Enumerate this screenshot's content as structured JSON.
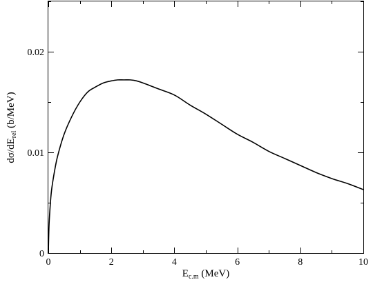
{
  "chart_data": {
    "type": "line",
    "xlabel": {
      "main": "E",
      "sub": "c.m",
      "rest": " (MeV)"
    },
    "ylabel": {
      "pre": "dσ/dE",
      "sub": "rel",
      "rest": " (b/MeV)"
    },
    "xlim": [
      0,
      10
    ],
    "ylim": [
      0,
      0.025
    ],
    "xticks": [
      {
        "value": 0,
        "label": "0"
      },
      {
        "value": 2,
        "label": "2"
      },
      {
        "value": 4,
        "label": "4"
      },
      {
        "value": 6,
        "label": "6"
      },
      {
        "value": 8,
        "label": "8"
      },
      {
        "value": 10,
        "label": "10"
      }
    ],
    "yticks": [
      {
        "value": 0,
        "label": "0"
      },
      {
        "value": 0.01,
        "label": "0.01"
      },
      {
        "value": 0.02,
        "label": "0.02"
      }
    ],
    "grid": false,
    "series": [
      {
        "color": "#000000",
        "x": [
          0.0,
          0.02,
          0.05,
          0.1,
          0.2,
          0.3,
          0.5,
          0.75,
          1.0,
          1.25,
          1.5,
          1.75,
          2.0,
          2.2,
          2.4,
          2.6,
          2.8,
          3.0,
          3.5,
          4.0,
          4.5,
          5.0,
          5.5,
          6.0,
          6.5,
          7.0,
          7.5,
          8.0,
          8.5,
          9.0,
          9.5,
          10.0
        ],
        "y": [
          0.0,
          0.0026,
          0.0043,
          0.0062,
          0.0082,
          0.0097,
          0.0118,
          0.0136,
          0.015,
          0.016,
          0.0165,
          0.0169,
          0.0171,
          0.0172,
          0.0172,
          0.0172,
          0.0171,
          0.0169,
          0.0163,
          0.0157,
          0.0147,
          0.0138,
          0.0128,
          0.0118,
          0.011,
          0.0101,
          0.0094,
          0.0087,
          0.008,
          0.0074,
          0.0069,
          0.0063
        ]
      }
    ]
  }
}
